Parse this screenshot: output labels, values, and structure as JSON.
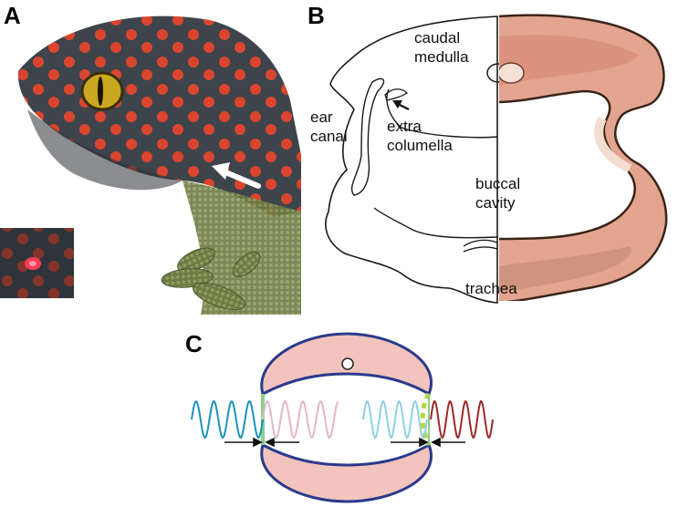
{
  "panels": [
    {
      "letter": "A"
    },
    {
      "letter": "B"
    },
    {
      "letter": "C"
    }
  ],
  "labels_b": {
    "caudal_medulla": "caudal\nmedulla",
    "ear_canal": "ear\ncanal",
    "extra_columella": "extra\ncolumella",
    "buccal_cavity": "buccal\ncavity",
    "trachea": "trachea"
  },
  "colors": {
    "gecko_body": "#3c4248",
    "gecko_spots": "#d9452e",
    "eye": "#c9a81f",
    "tissue": "#d99a86",
    "head_fill": "#f2c4bd",
    "head_stroke": "#2b3a8c",
    "wave_left_in": "#1a93b8",
    "wave_left_out": "#e3b6cb",
    "wave_right_in": "#8fd0e0",
    "wave_right_out": "#9a2a2a",
    "membrane_solid": "#8ccf8c",
    "membrane_dashed": "#b6d63a"
  },
  "icons": {
    "white_arrow": "white-arrow-icon",
    "black_arrow": "black-arrow-icon"
  }
}
